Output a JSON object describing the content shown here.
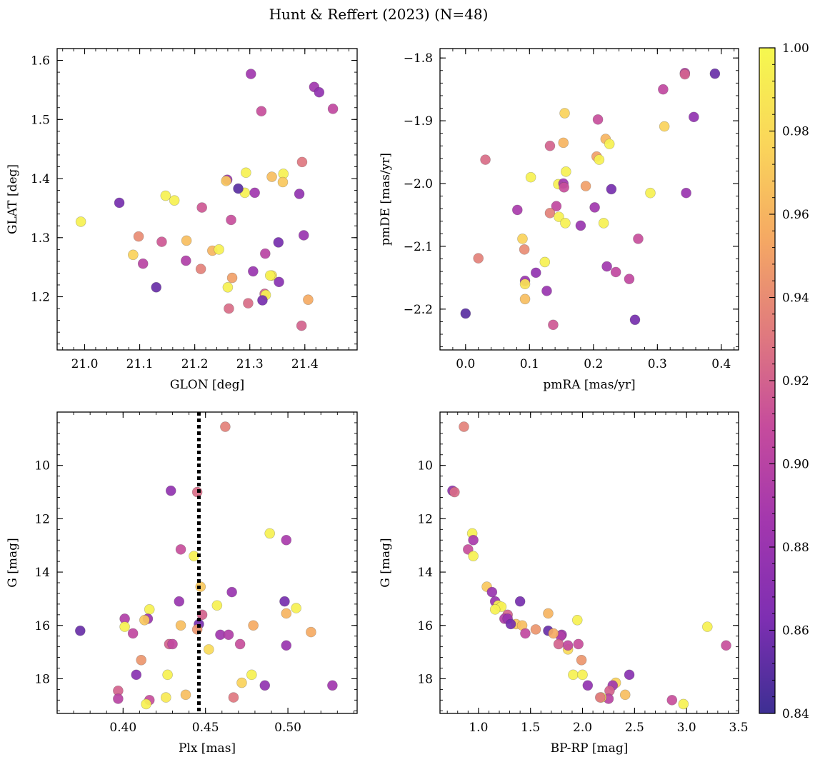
{
  "title": "Hunt & Reffert (2023) (N=48)",
  "colormap": {
    "name": "plasma",
    "min": 0.84,
    "max": 1.0,
    "ticks": [
      0.84,
      0.86,
      0.88,
      0.9,
      0.92,
      0.94,
      0.96,
      0.98,
      1.0
    ],
    "tick_labels": [
      "0.84",
      "0.86",
      "0.88",
      "0.90",
      "0.92",
      "0.94",
      "0.96",
      "0.98",
      "1.00"
    ],
    "stops": [
      "#3d2f93",
      "#7e2fb2",
      "#a237ae",
      "#c54b9d",
      "#e07a7e",
      "#f5a963",
      "#fad65a",
      "#f5f84f"
    ]
  },
  "chart_data": [
    {
      "type": "scatter",
      "id": "pos",
      "xlabel": "GLON [deg]",
      "ylabel": "GLAT [deg]",
      "xlim": [
        20.95,
        21.495
      ],
      "ylim": [
        1.11,
        1.62
      ],
      "invert_y": false,
      "xticks": [
        21.0,
        21.1,
        21.2,
        21.3,
        21.4
      ],
      "xtick_labels": [
        "21.0",
        "21.1",
        "21.2",
        "21.3",
        "21.4"
      ],
      "yticks": [
        1.2,
        1.3,
        1.4,
        1.5,
        1.6
      ],
      "ytick_labels": [
        "1.2",
        "1.3",
        "1.4",
        "1.5",
        "1.6"
      ],
      "xminor": 0.02,
      "yminor": 0.02,
      "points": [
        [
          21.302,
          1.577,
          0.885
        ],
        [
          21.417,
          1.555,
          0.885
        ],
        [
          21.426,
          1.546,
          0.875
        ],
        [
          21.451,
          1.518,
          0.905
        ],
        [
          21.321,
          1.514,
          0.91
        ],
        [
          21.395,
          1.428,
          0.93
        ],
        [
          21.293,
          1.41,
          0.995
        ],
        [
          21.361,
          1.408,
          0.995
        ],
        [
          21.34,
          1.403,
          0.965
        ],
        [
          21.259,
          1.398,
          0.88
        ],
        [
          21.257,
          1.396,
          0.97
        ],
        [
          21.36,
          1.394,
          0.97
        ],
        [
          21.147,
          1.371,
          0.995
        ],
        [
          21.163,
          1.363,
          0.995
        ],
        [
          21.291,
          1.376,
          0.995
        ],
        [
          21.309,
          1.376,
          0.885
        ],
        [
          21.39,
          1.374,
          0.875
        ],
        [
          21.063,
          1.359,
          0.86
        ],
        [
          21.279,
          1.383,
          0.85
        ],
        [
          21.213,
          1.351,
          0.915
        ],
        [
          21.266,
          1.33,
          0.91
        ],
        [
          20.993,
          1.327,
          0.995
        ],
        [
          21.098,
          1.302,
          0.94
        ],
        [
          21.14,
          1.293,
          0.915
        ],
        [
          21.185,
          1.295,
          0.965
        ],
        [
          21.398,
          1.304,
          0.88
        ],
        [
          21.352,
          1.292,
          0.86
        ],
        [
          21.232,
          1.278,
          0.96
        ],
        [
          21.244,
          1.28,
          0.995
        ],
        [
          21.088,
          1.271,
          0.975
        ],
        [
          21.328,
          1.273,
          0.9
        ],
        [
          21.106,
          1.256,
          0.9
        ],
        [
          21.184,
          1.261,
          0.895
        ],
        [
          21.211,
          1.247,
          0.935
        ],
        [
          21.13,
          1.216,
          0.855
        ],
        [
          21.268,
          1.232,
          0.95
        ],
        [
          21.306,
          1.243,
          0.88
        ],
        [
          21.34,
          1.236,
          0.985
        ],
        [
          21.337,
          1.236,
          0.995
        ],
        [
          21.353,
          1.225,
          0.87
        ],
        [
          21.26,
          1.216,
          0.995
        ],
        [
          21.327,
          1.205,
          0.92
        ],
        [
          21.329,
          1.203,
          0.995
        ],
        [
          21.406,
          1.195,
          0.955
        ],
        [
          21.323,
          1.194,
          0.86
        ],
        [
          21.262,
          1.18,
          0.925
        ],
        [
          21.297,
          1.189,
          0.925
        ],
        [
          21.394,
          1.151,
          0.92
        ]
      ]
    },
    {
      "type": "scatter",
      "id": "pm",
      "xlabel": "pmRA [mas/yr]",
      "ylabel": "pmDE [mas/yr]",
      "xlim": [
        -0.04,
        0.427
      ],
      "ylim": [
        -2.265,
        -1.785
      ],
      "invert_y": false,
      "xticks": [
        0.0,
        0.1,
        0.2,
        0.3,
        0.4
      ],
      "xtick_labels": [
        "0.0",
        "0.1",
        "0.2",
        "0.3",
        "0.4"
      ],
      "yticks": [
        -2.2,
        -2.1,
        -2.0,
        -1.9,
        -1.8
      ],
      "ytick_labels": [
        "−2.2",
        "−2.1",
        "−2.0",
        "−1.9",
        "−1.8"
      ],
      "xminor": 0.02,
      "yminor": 0.02,
      "points": [
        [
          0.343,
          -1.824,
          0.895
        ],
        [
          0.343,
          -1.826,
          0.92
        ],
        [
          0.39,
          -1.825,
          0.855
        ],
        [
          0.309,
          -1.85,
          0.905
        ],
        [
          0.357,
          -1.894,
          0.875
        ],
        [
          0.155,
          -1.888,
          0.975
        ],
        [
          0.207,
          -1.898,
          0.91
        ],
        [
          0.311,
          -1.909,
          0.975
        ],
        [
          0.219,
          -1.929,
          0.96
        ],
        [
          0.153,
          -1.935,
          0.96
        ],
        [
          0.225,
          -1.937,
          0.995
        ],
        [
          0.132,
          -1.94,
          0.92
        ],
        [
          0.031,
          -1.962,
          0.925
        ],
        [
          0.205,
          -1.957,
          0.95
        ],
        [
          0.209,
          -1.962,
          0.995
        ],
        [
          0.157,
          -1.981,
          0.995
        ],
        [
          0.102,
          -1.99,
          0.995
        ],
        [
          0.145,
          -2.001,
          0.995
        ],
        [
          0.153,
          -2.0,
          0.885
        ],
        [
          0.154,
          -2.006,
          0.91
        ],
        [
          0.188,
          -2.004,
          0.95
        ],
        [
          0.228,
          -2.009,
          0.86
        ],
        [
          0.289,
          -2.015,
          0.995
        ],
        [
          0.345,
          -2.015,
          0.88
        ],
        [
          0.081,
          -2.042,
          0.89
        ],
        [
          0.142,
          -2.036,
          0.905
        ],
        [
          0.202,
          -2.038,
          0.885
        ],
        [
          0.132,
          -2.047,
          0.935
        ],
        [
          0.146,
          -2.053,
          0.995
        ],
        [
          0.156,
          -2.063,
          0.995
        ],
        [
          0.216,
          -2.063,
          0.995
        ],
        [
          0.18,
          -2.067,
          0.88
        ],
        [
          0.089,
          -2.088,
          0.975
        ],
        [
          0.27,
          -2.088,
          0.91
        ],
        [
          0.02,
          -2.119,
          0.935
        ],
        [
          0.092,
          -2.105,
          0.94
        ],
        [
          0.124,
          -2.125,
          0.995
        ],
        [
          0.221,
          -2.132,
          0.885
        ],
        [
          0.235,
          -2.141,
          0.905
        ],
        [
          0.256,
          -2.152,
          0.905
        ],
        [
          0.093,
          -2.155,
          0.88
        ],
        [
          0.093,
          -2.16,
          0.985
        ],
        [
          0.11,
          -2.142,
          0.875
        ],
        [
          0.127,
          -2.171,
          0.88
        ],
        [
          0.093,
          -2.184,
          0.965
        ],
        [
          0.0,
          -2.207,
          0.85
        ],
        [
          0.265,
          -2.217,
          0.86
        ],
        [
          0.137,
          -2.225,
          0.915
        ]
      ]
    },
    {
      "type": "scatter",
      "id": "plx",
      "xlabel": "Plx [mas]",
      "ylabel": "G [mag]",
      "xlim": [
        0.36,
        0.542
      ],
      "ylim": [
        8.0,
        19.3
      ],
      "invert_y": true,
      "xticks": [
        0.4,
        0.45,
        0.5
      ],
      "xtick_labels": [
        "0.40",
        "0.45",
        "0.50"
      ],
      "yticks": [
        10,
        12,
        14,
        16,
        18
      ],
      "ytick_labels": [
        "10",
        "12",
        "14",
        "16",
        "18"
      ],
      "xminor": 0.01,
      "yminor": 0.4,
      "vline": 0.446,
      "points": [
        [
          0.462,
          8.55,
          0.935
        ],
        [
          0.429,
          10.95,
          0.875
        ],
        [
          0.445,
          11.0,
          0.925
        ],
        [
          0.489,
          12.55,
          0.995
        ],
        [
          0.499,
          12.8,
          0.89
        ],
        [
          0.435,
          13.15,
          0.91
        ],
        [
          0.443,
          13.4,
          0.995
        ],
        [
          0.447,
          14.55,
          0.97
        ],
        [
          0.466,
          14.75,
          0.88
        ],
        [
          0.434,
          15.1,
          0.88
        ],
        [
          0.498,
          15.1,
          0.86
        ],
        [
          0.457,
          15.25,
          0.995
        ],
        [
          0.505,
          15.35,
          0.995
        ],
        [
          0.416,
          15.4,
          0.995
        ],
        [
          0.499,
          15.55,
          0.96
        ],
        [
          0.448,
          15.6,
          0.92
        ],
        [
          0.401,
          15.75,
          0.895
        ],
        [
          0.415,
          15.75,
          0.88
        ],
        [
          0.413,
          15.8,
          0.97
        ],
        [
          0.401,
          16.05,
          0.995
        ],
        [
          0.446,
          15.95,
          0.86
        ],
        [
          0.435,
          16.0,
          0.965
        ],
        [
          0.479,
          16.0,
          0.955
        ],
        [
          0.374,
          16.2,
          0.855
        ],
        [
          0.445,
          16.15,
          0.945
        ],
        [
          0.406,
          16.3,
          0.905
        ],
        [
          0.459,
          16.35,
          0.885
        ],
        [
          0.464,
          16.35,
          0.895
        ],
        [
          0.514,
          16.25,
          0.955
        ],
        [
          0.452,
          16.9,
          0.98
        ],
        [
          0.428,
          16.7,
          0.92
        ],
        [
          0.43,
          16.7,
          0.905
        ],
        [
          0.471,
          16.7,
          0.91
        ],
        [
          0.499,
          16.75,
          0.88
        ],
        [
          0.411,
          17.3,
          0.945
        ],
        [
          0.408,
          17.85,
          0.87
        ],
        [
          0.427,
          17.85,
          0.995
        ],
        [
          0.478,
          17.85,
          0.995
        ],
        [
          0.472,
          18.15,
          0.975
        ],
        [
          0.486,
          18.25,
          0.875
        ],
        [
          0.527,
          18.25,
          0.885
        ],
        [
          0.397,
          18.45,
          0.92
        ],
        [
          0.416,
          18.8,
          0.91
        ],
        [
          0.397,
          18.75,
          0.9
        ],
        [
          0.426,
          18.7,
          0.99
        ],
        [
          0.438,
          18.6,
          0.965
        ],
        [
          0.467,
          18.7,
          0.93
        ],
        [
          0.414,
          18.95,
          0.995
        ]
      ]
    },
    {
      "type": "scatter",
      "id": "cmd",
      "xlabel": "BP-RP [mag]",
      "ylabel": "G [mag]",
      "xlim": [
        0.63,
        3.5
      ],
      "ylim": [
        8.0,
        19.3
      ],
      "invert_y": true,
      "xticks": [
        1.0,
        1.5,
        2.0,
        2.5,
        3.0,
        3.5
      ],
      "xtick_labels": [
        "1.0",
        "1.5",
        "2.0",
        "2.5",
        "3.0",
        "3.5"
      ],
      "yticks": [
        10,
        12,
        14,
        16,
        18
      ],
      "ytick_labels": [
        "10",
        "12",
        "14",
        "16",
        "18"
      ],
      "xminor": 0.1,
      "yminor": 0.4,
      "points": [
        [
          0.86,
          8.55,
          0.935
        ],
        [
          0.75,
          10.95,
          0.875
        ],
        [
          0.77,
          11.0,
          0.925
        ],
        [
          0.94,
          12.55,
          0.995
        ],
        [
          0.95,
          12.8,
          0.89
        ],
        [
          0.9,
          13.15,
          0.91
        ],
        [
          0.95,
          13.4,
          0.995
        ],
        [
          1.08,
          14.55,
          0.97
        ],
        [
          1.13,
          14.75,
          0.88
        ],
        [
          1.16,
          15.1,
          0.88
        ],
        [
          1.4,
          15.1,
          0.86
        ],
        [
          1.19,
          15.25,
          0.995
        ],
        [
          1.22,
          15.3,
          0.995
        ],
        [
          1.16,
          15.4,
          0.995
        ],
        [
          1.67,
          15.55,
          0.96
        ],
        [
          1.28,
          15.6,
          0.92
        ],
        [
          1.25,
          15.75,
          0.895
        ],
        [
          1.28,
          15.75,
          0.88
        ],
        [
          1.36,
          15.95,
          0.97
        ],
        [
          1.42,
          16.0,
          0.965
        ],
        [
          1.31,
          15.95,
          0.86
        ],
        [
          1.95,
          15.8,
          0.995
        ],
        [
          1.67,
          16.2,
          0.855
        ],
        [
          1.55,
          16.15,
          0.945
        ],
        [
          1.45,
          16.3,
          0.905
        ],
        [
          1.8,
          16.35,
          0.885
        ],
        [
          1.79,
          16.4,
          0.895
        ],
        [
          1.72,
          16.3,
          0.955
        ],
        [
          1.86,
          16.9,
          0.98
        ],
        [
          1.77,
          16.7,
          0.92
        ],
        [
          1.86,
          16.75,
          0.905
        ],
        [
          1.96,
          16.7,
          0.91
        ],
        [
          3.2,
          16.05,
          0.995
        ],
        [
          3.38,
          16.75,
          0.91
        ],
        [
          1.99,
          17.3,
          0.945
        ],
        [
          2.45,
          17.85,
          0.87
        ],
        [
          1.91,
          17.85,
          0.995
        ],
        [
          2.0,
          17.85,
          0.995
        ],
        [
          2.32,
          18.15,
          0.975
        ],
        [
          2.05,
          18.25,
          0.875
        ],
        [
          2.29,
          18.25,
          0.885
        ],
        [
          2.26,
          18.45,
          0.92
        ],
        [
          2.86,
          18.8,
          0.91
        ],
        [
          2.25,
          18.75,
          0.9
        ],
        [
          2.18,
          18.7,
          0.99
        ],
        [
          2.41,
          18.6,
          0.965
        ],
        [
          2.17,
          18.7,
          0.93
        ],
        [
          2.97,
          18.95,
          0.995
        ]
      ]
    }
  ]
}
